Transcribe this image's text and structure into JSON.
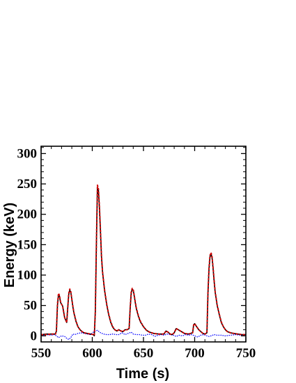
{
  "chart_data": {
    "type": "line",
    "xlabel": "Time (s)",
    "ylabel": "Energy (keV)",
    "xlim": [
      550,
      750
    ],
    "ylim": [
      -10,
      312
    ],
    "xticks": [
      550,
      600,
      650,
      700,
      750
    ],
    "yticks": [
      0,
      50,
      100,
      150,
      200,
      250,
      300
    ],
    "xtick_labels": [
      "550",
      "600",
      "650",
      "700",
      "750"
    ],
    "ytick_labels": [
      "0",
      "50",
      "100",
      "150",
      "200",
      "250",
      "300"
    ],
    "grid": false,
    "legend": "none",
    "series": [
      {
        "color": "#000000",
        "style": "solid",
        "x": [
          550,
          555,
          560,
          564,
          565,
          566,
          567,
          568,
          569,
          570,
          571,
          572,
          573,
          575,
          576,
          577,
          578,
          579,
          580,
          581,
          582,
          584,
          586,
          588,
          590,
          592,
          595,
          598,
          601,
          602,
          603,
          604,
          605,
          606,
          607,
          608,
          609,
          610,
          612,
          614,
          616,
          618,
          620,
          622,
          624,
          626,
          628,
          630,
          632,
          634,
          636,
          637,
          638,
          639,
          640,
          641,
          642,
          643,
          645,
          647,
          650,
          653,
          656,
          660,
          665,
          670,
          672,
          674,
          676,
          678,
          680,
          682,
          684,
          686,
          688,
          690,
          694,
          698,
          699,
          700,
          702,
          704,
          706,
          708,
          710,
          712,
          713,
          714,
          715,
          716,
          717,
          718,
          719,
          720,
          722,
          724,
          726,
          728,
          730,
          732,
          735,
          738,
          742,
          746,
          750
        ],
        "y": [
          2,
          3,
          3,
          3,
          8,
          50,
          68,
          65,
          55,
          52,
          49,
          40,
          30,
          22,
          45,
          68,
          75,
          72,
          60,
          48,
          38,
          24,
          15,
          10,
          7,
          5,
          4,
          3,
          2,
          0,
          40,
          150,
          245,
          240,
          210,
          170,
          130,
          105,
          75,
          52,
          35,
          22,
          14,
          10,
          8,
          10,
          8,
          7,
          10,
          10,
          12,
          45,
          70,
          77,
          75,
          65,
          55,
          45,
          32,
          23,
          15,
          9,
          6,
          4,
          3,
          3,
          8,
          6,
          3,
          2,
          5,
          12,
          10,
          8,
          6,
          4,
          3,
          5,
          18,
          20,
          15,
          10,
          7,
          4,
          3,
          5,
          70,
          110,
          130,
          135,
          128,
          110,
          90,
          72,
          50,
          35,
          22,
          15,
          10,
          7,
          5,
          4,
          3,
          2,
          2
        ]
      },
      {
        "color": "#d40000",
        "style": "dotted",
        "x": [
          550,
          555,
          560,
          564,
          565,
          566,
          567,
          568,
          569,
          570,
          571,
          572,
          573,
          575,
          576,
          577,
          578,
          579,
          580,
          581,
          582,
          584,
          586,
          588,
          590,
          592,
          595,
          598,
          601,
          602,
          603,
          604,
          605,
          606,
          607,
          608,
          609,
          610,
          612,
          614,
          616,
          618,
          620,
          622,
          624,
          626,
          628,
          630,
          632,
          634,
          636,
          637,
          638,
          639,
          640,
          641,
          642,
          643,
          645,
          647,
          650,
          653,
          656,
          660,
          665,
          670,
          672,
          674,
          676,
          678,
          680,
          682,
          684,
          686,
          688,
          690,
          694,
          698,
          699,
          700,
          702,
          704,
          706,
          708,
          710,
          712,
          713,
          714,
          715,
          716,
          717,
          718,
          719,
          720,
          722,
          724,
          726,
          728,
          730,
          732,
          735,
          738,
          742,
          746,
          750
        ],
        "y": [
          2,
          2,
          3,
          3,
          8,
          52,
          70,
          66,
          56,
          52,
          49,
          40,
          30,
          22,
          46,
          70,
          77,
          73,
          61,
          49,
          39,
          25,
          15,
          10,
          7,
          5,
          4,
          3,
          2,
          1,
          42,
          152,
          248,
          242,
          212,
          172,
          132,
          106,
          76,
          53,
          36,
          23,
          15,
          10,
          8,
          10,
          8,
          7,
          10,
          10,
          12,
          46,
          72,
          78,
          76,
          66,
          56,
          46,
          33,
          24,
          15,
          9,
          6,
          4,
          3,
          3,
          8,
          6,
          3,
          2,
          5,
          12,
          10,
          8,
          6,
          4,
          3,
          5,
          18,
          20,
          15,
          10,
          7,
          4,
          3,
          5,
          72,
          112,
          132,
          137,
          130,
          112,
          92,
          73,
          51,
          36,
          23,
          15,
          10,
          7,
          5,
          4,
          3,
          2,
          2
        ]
      },
      {
        "color": "#0000ff",
        "style": "dotted",
        "x": [
          550,
          555,
          560,
          563,
          565,
          567,
          570,
          573,
          575,
          577,
          579,
          581,
          583,
          586,
          589,
          592,
          595,
          598,
          601,
          603,
          605,
          608,
          611,
          614,
          617,
          620,
          623,
          626,
          629,
          632,
          635,
          638,
          640,
          643,
          646,
          649,
          652,
          655,
          658,
          661,
          664,
          667,
          670,
          673,
          676,
          679,
          682,
          685,
          688,
          691,
          694,
          697,
          700,
          703,
          706,
          709,
          712,
          714,
          716,
          719,
          722,
          726,
          730,
          735,
          740,
          745,
          750
        ],
        "y": [
          1,
          2,
          1,
          2,
          0,
          -3,
          0,
          -1,
          -4,
          -6,
          -3,
          3,
          2,
          4,
          5,
          4,
          3,
          2,
          6,
          8,
          9,
          5,
          3,
          2,
          2,
          3,
          2,
          2,
          5,
          2,
          4,
          6,
          3,
          2,
          2,
          1,
          1,
          3,
          2,
          -1,
          1,
          2,
          1,
          3,
          2,
          1,
          -1,
          1,
          0,
          2,
          1,
          2,
          0,
          -2,
          1,
          2,
          0,
          -1,
          0,
          2,
          1,
          1,
          0,
          1,
          2,
          1,
          1
        ]
      }
    ]
  }
}
